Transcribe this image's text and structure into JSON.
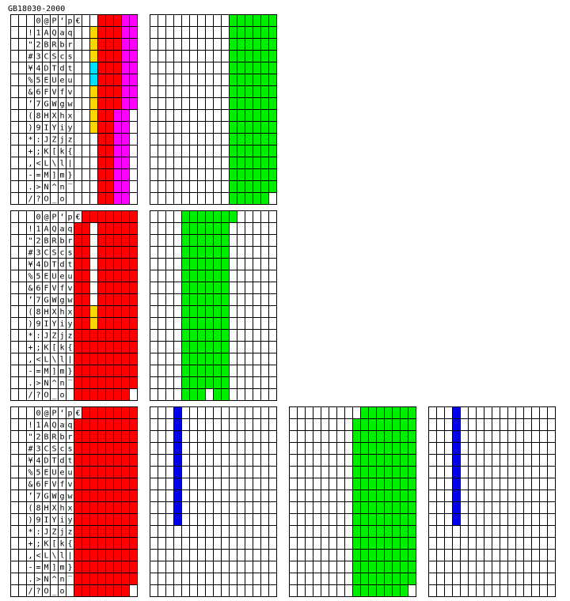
{
  "title": "GB18030-2000",
  "charset": {
    "columns": [
      [
        null,
        "!",
        "\"",
        "#",
        "¥",
        "%",
        "&",
        "’",
        "(",
        ")",
        "*",
        "+",
        ",",
        "-",
        ".",
        "/"
      ],
      [
        "0",
        "1",
        "2",
        "3",
        "4",
        "5",
        "6",
        "7",
        "8",
        "9",
        ":",
        ";",
        "<",
        "=",
        ">",
        "?"
      ],
      [
        "@",
        "A",
        "B",
        "C",
        "D",
        "E",
        "F",
        "G",
        "H",
        "I",
        "J",
        "K",
        "L",
        "M",
        "N",
        "O"
      ],
      [
        "P",
        "Q",
        "R",
        "S",
        "T",
        "U",
        "V",
        "W",
        "X",
        "Y",
        "Z",
        "[",
        "\\",
        "]",
        "^",
        "_"
      ],
      [
        "‘",
        "a",
        "b",
        "c",
        "d",
        "e",
        "f",
        "g",
        "h",
        "i",
        "j",
        "k",
        "l",
        "m",
        "n",
        "o"
      ],
      [
        "p",
        "q",
        "r",
        "s",
        "t",
        "u",
        "v",
        "w",
        "x",
        "y",
        "z",
        "{",
        "|",
        "}",
        "‾",
        null
      ],
      [
        "€"
      ]
    ]
  }
}
